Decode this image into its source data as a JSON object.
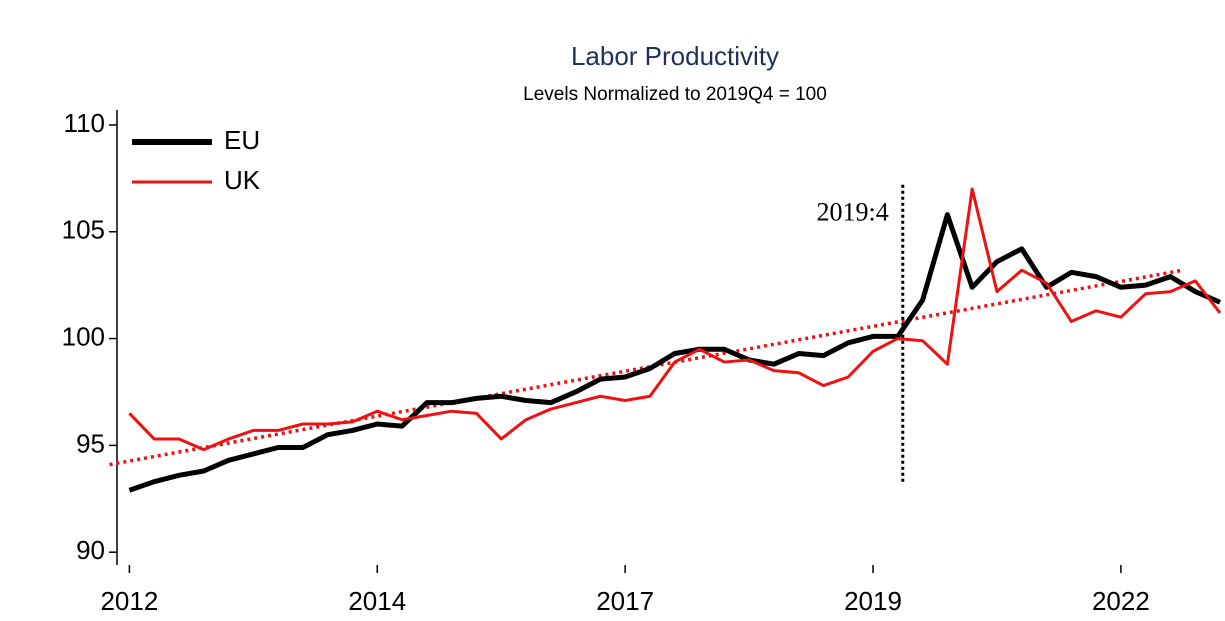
{
  "chart_data": {
    "type": "line",
    "title": "Labor Productivity",
    "subtitle": "Levels Normalized to 2019Q4 = 100",
    "x": [
      0,
      1,
      2,
      3,
      4,
      5,
      6,
      7,
      8,
      9,
      10,
      11,
      12,
      13,
      14,
      15,
      16,
      17,
      18,
      19,
      20,
      21,
      22,
      23,
      24,
      25,
      26,
      27,
      28,
      29,
      30,
      31,
      32,
      33,
      34,
      35,
      36,
      37,
      38,
      39,
      40,
      41,
      42,
      43,
      44
    ],
    "series": [
      {
        "name": "EU",
        "color": "#000000",
        "values": [
          92.9,
          93.3,
          93.6,
          93.8,
          94.3,
          94.6,
          94.9,
          94.9,
          95.5,
          95.7,
          96.0,
          95.9,
          97.0,
          97.0,
          97.2,
          97.3,
          97.1,
          97.0,
          97.5,
          98.1,
          98.2,
          98.6,
          99.3,
          99.5,
          99.5,
          99.0,
          98.8,
          99.3,
          99.2,
          99.8,
          100.1,
          100.1,
          101.8,
          105.8,
          102.4,
          103.6,
          104.2,
          102.4,
          103.1,
          102.9,
          102.4,
          102.5,
          102.9,
          102.2,
          101.7
        ]
      },
      {
        "name": "UK",
        "color": "#ee1111",
        "values": [
          96.5,
          95.3,
          95.3,
          94.8,
          95.3,
          95.7,
          95.7,
          96.0,
          96.0,
          96.1,
          96.6,
          96.2,
          96.4,
          96.6,
          96.5,
          95.3,
          96.2,
          96.7,
          97.0,
          97.3,
          97.1,
          97.3,
          98.9,
          99.5,
          98.9,
          99.0,
          98.5,
          98.4,
          97.8,
          98.2,
          99.4,
          100.0,
          99.9,
          98.8,
          107.0,
          102.2,
          103.2,
          102.6,
          100.8,
          101.3,
          101.0,
          102.1,
          102.2,
          102.7,
          101.2
        ]
      }
    ],
    "trend": {
      "color": "#ee1111",
      "x": [
        -0.8,
        42.5
      ],
      "values": [
        94.1,
        103.2
      ]
    },
    "annotations": [
      {
        "text": "2019:4",
        "x": 31.2,
        "ymin": 93.3,
        "ymax": 107.3
      }
    ],
    "xlim": [
      -0.5,
      44.2
    ],
    "xticks": [
      {
        "value": 0,
        "label": "2012"
      },
      {
        "value": 10,
        "label": "2014"
      },
      {
        "value": 20,
        "label": "2017"
      },
      {
        "value": 30,
        "label": "2019"
      },
      {
        "value": 40,
        "label": "2022"
      }
    ],
    "ylim": [
      89.4,
      110.7
    ],
    "yticks": [
      90,
      95,
      100,
      105,
      110
    ],
    "legend": "upper left"
  }
}
